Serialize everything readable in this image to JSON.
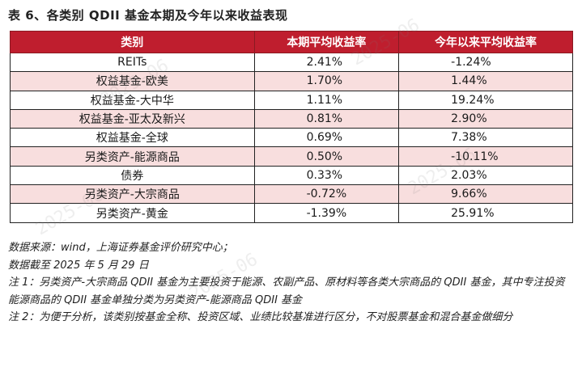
{
  "title": "表 6、各类别 QDII 基金本期及今年以来收益表现",
  "table": {
    "headers": [
      "类别",
      "本期平均收益率",
      "今年以来平均收益率"
    ],
    "rows": [
      {
        "category": "REITs",
        "period": "2.41%",
        "ytd": "-1.24%"
      },
      {
        "category": "权益基金-欧美",
        "period": "1.70%",
        "ytd": "1.44%"
      },
      {
        "category": "权益基金-大中华",
        "period": "1.11%",
        "ytd": "19.24%"
      },
      {
        "category": "权益基金-亚太及新兴",
        "period": "0.81%",
        "ytd": "2.90%"
      },
      {
        "category": "权益基金-全球",
        "period": "0.69%",
        "ytd": "7.38%"
      },
      {
        "category": "另类资产-能源商品",
        "period": "0.50%",
        "ytd": "-10.11%"
      },
      {
        "category": "债券",
        "period": "0.33%",
        "ytd": "2.03%"
      },
      {
        "category": "另类资产-大宗商品",
        "period": "-0.72%",
        "ytd": "9.66%"
      },
      {
        "category": "另类资产-黄金",
        "period": "-1.39%",
        "ytd": "25.91%"
      }
    ]
  },
  "notes": {
    "source": "数据来源：wind，上海证券基金评价研究中心；",
    "cutoff": "数据截至 2025 年 5 月 29 日",
    "note1": "注 1：另类资产-大宗商品 QDII 基金为主要投资于能源、农副产品、原材料等各类大宗商品的 QDII 基金，其中专注投资能源商品的 QDII 基金单独分类为另类资产-能源商品 QDII 基金",
    "note2": "注 2：为便于分析，该类别按基金全称、投资区域、业绩比较基准进行区分，不对股票基金和混合基金做细分"
  },
  "colors": {
    "header_bg": "#bf1e2e",
    "stripe": "#f8dede"
  }
}
